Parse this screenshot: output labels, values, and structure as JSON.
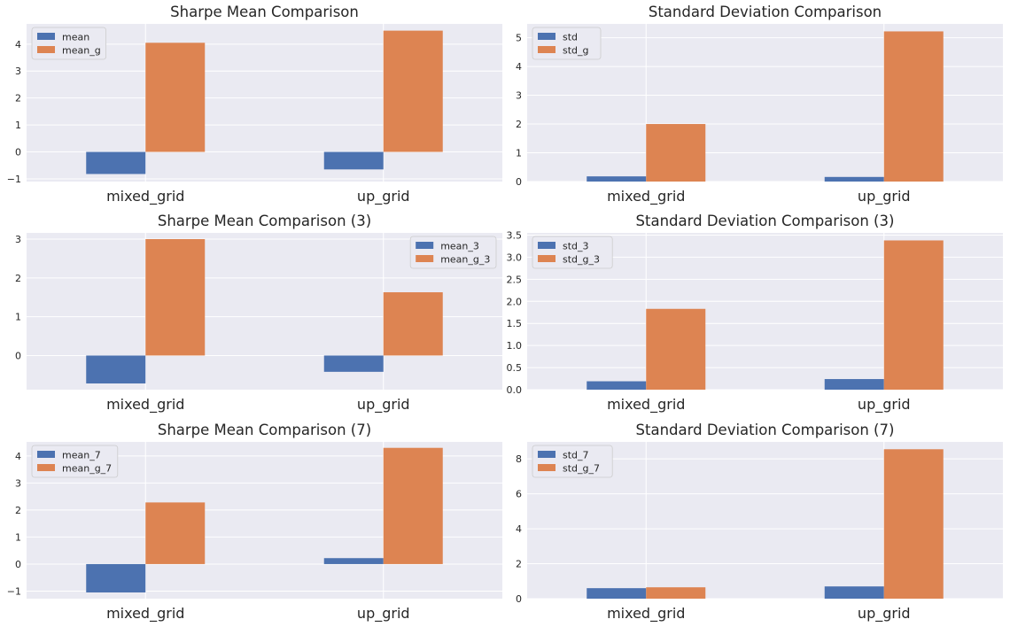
{
  "colors": {
    "background": "#eaeaf2",
    "grid": "#ffffff",
    "series_1": "#4c72b0",
    "series_2": "#dd8452",
    "text": "#262626"
  },
  "chart_data": [
    {
      "type": "bar",
      "title": "Sharpe Mean Comparison",
      "categories": [
        "mixed_grid",
        "up_grid"
      ],
      "series": [
        {
          "name": "mean",
          "values": [
            -0.82,
            -0.65
          ]
        },
        {
          "name": "mean_g",
          "values": [
            4.05,
            4.5
          ]
        }
      ],
      "ylim": [
        -1.1,
        4.75
      ],
      "yticks": [
        -1,
        0,
        1,
        2,
        3,
        4
      ],
      "legend": "top-left",
      "grid": true
    },
    {
      "type": "bar",
      "title": "Standard Deviation Comparison",
      "categories": [
        "mixed_grid",
        "up_grid"
      ],
      "series": [
        {
          "name": "std",
          "values": [
            0.18,
            0.16
          ]
        },
        {
          "name": "std_g",
          "values": [
            2.0,
            5.22
          ]
        }
      ],
      "ylim": [
        0,
        5.48
      ],
      "yticks": [
        0,
        1,
        2,
        3,
        4,
        5
      ],
      "legend": "top-left",
      "grid": true
    },
    {
      "type": "bar",
      "title": "Sharpe Mean Comparison (3)",
      "categories": [
        "mixed_grid",
        "up_grid"
      ],
      "series": [
        {
          "name": "mean_3",
          "values": [
            -0.72,
            -0.42
          ]
        },
        {
          "name": "mean_g_3",
          "values": [
            3.0,
            1.63
          ]
        }
      ],
      "ylim": [
        -0.88,
        3.16
      ],
      "yticks": [
        0,
        1,
        2,
        3
      ],
      "legend": "top-right",
      "grid": true
    },
    {
      "type": "bar",
      "title": "Standard Deviation Comparison (3)",
      "categories": [
        "mixed_grid",
        "up_grid"
      ],
      "series": [
        {
          "name": "std_3",
          "values": [
            0.19,
            0.24
          ]
        },
        {
          "name": "std_g_3",
          "values": [
            1.83,
            3.38
          ]
        }
      ],
      "ylim": [
        0,
        3.55
      ],
      "yticks": [
        0.0,
        0.5,
        1.0,
        1.5,
        2.0,
        2.5,
        3.0,
        3.5
      ],
      "ytick_labels": [
        "0.0",
        "0.5",
        "1.0",
        "1.5",
        "2.0",
        "2.5",
        "3.0",
        "3.5"
      ],
      "legend": "top-left",
      "grid": true
    },
    {
      "type": "bar",
      "title": "Sharpe Mean Comparison (7)",
      "categories": [
        "mixed_grid",
        "up_grid"
      ],
      "series": [
        {
          "name": "mean_7",
          "values": [
            -1.05,
            0.22
          ]
        },
        {
          "name": "mean_g_7",
          "values": [
            2.28,
            4.3
          ]
        }
      ],
      "ylim": [
        -1.28,
        4.52
      ],
      "yticks": [
        -1,
        0,
        1,
        2,
        3,
        4
      ],
      "legend": "top-left",
      "grid": true
    },
    {
      "type": "bar",
      "title": "Standard Deviation Comparison (7)",
      "categories": [
        "mixed_grid",
        "up_grid"
      ],
      "series": [
        {
          "name": "std_7",
          "values": [
            0.6,
            0.7
          ]
        },
        {
          "name": "std_g_7",
          "values": [
            0.65,
            8.55
          ]
        }
      ],
      "ylim": [
        0,
        8.97
      ],
      "yticks": [
        0,
        2,
        4,
        6,
        8
      ],
      "legend": "top-left",
      "grid": true
    }
  ]
}
